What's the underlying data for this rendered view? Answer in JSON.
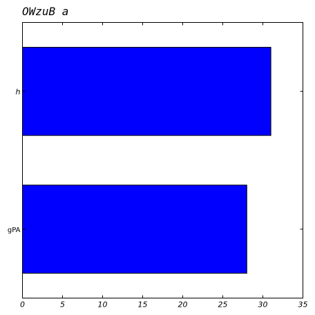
{
  "chart_data": {
    "type": "bar",
    "orientation": "horizontal",
    "title": "OWzuB a",
    "categories": [
      "gPA",
      "h"
    ],
    "values": [
      28,
      31
    ],
    "xlim": [
      0,
      35
    ],
    "xticks": [
      0,
      5,
      10,
      15,
      20,
      25,
      30,
      35
    ],
    "bar_color": "#0000ff",
    "grid": false,
    "xlabel": "",
    "ylabel": ""
  }
}
